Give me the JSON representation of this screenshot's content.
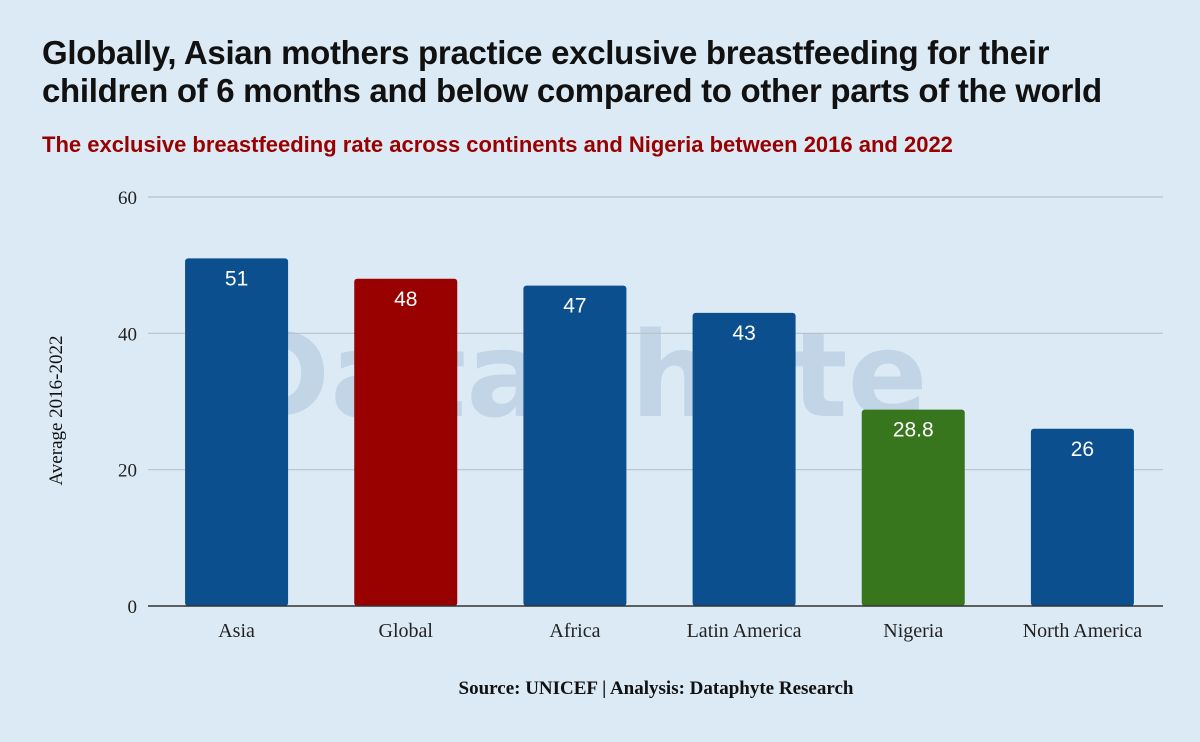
{
  "header": {
    "title": "Globally, Asian mothers practice exclusive breastfeeding for their children of 6 months and below compared to other parts of the world",
    "subtitle": "The exclusive breastfeeding rate across continents and Nigeria between 2016 and 2022"
  },
  "footer": {
    "source": "Source: UNICEF | Analysis: Dataphyte Research"
  },
  "watermark": "Dataphyte",
  "colors": {
    "background": "#dbeaf5",
    "bar_default": "#0b4f8f",
    "bar_global": "#990000",
    "bar_nigeria": "#38761d",
    "gridline": "#b7c2cc",
    "axis_line": "#333333",
    "title": "#111111",
    "subtitle": "#990000"
  },
  "chart_data": {
    "type": "bar",
    "title": "Globally, Asian mothers practice exclusive breastfeeding for their children of 6 months and below compared to other parts of the world",
    "subtitle": "The exclusive breastfeeding rate across continents and Nigeria between 2016 and 2022",
    "xlabel": "",
    "ylabel": "Average 2016-2022",
    "ylim": [
      0,
      60
    ],
    "yticks": [
      0,
      20,
      40,
      60
    ],
    "grid": true,
    "legend": "none",
    "categories": [
      "Asia",
      "Global",
      "Africa",
      "Latin America",
      "Nigeria",
      "North America"
    ],
    "values": [
      51,
      48,
      47,
      43,
      28.8,
      26
    ],
    "value_labels": [
      "51",
      "48",
      "47",
      "43",
      "28.8",
      "26"
    ],
    "bar_colors": [
      "#0b4f8f",
      "#990000",
      "#0b4f8f",
      "#0b4f8f",
      "#38761d",
      "#0b4f8f"
    ]
  }
}
